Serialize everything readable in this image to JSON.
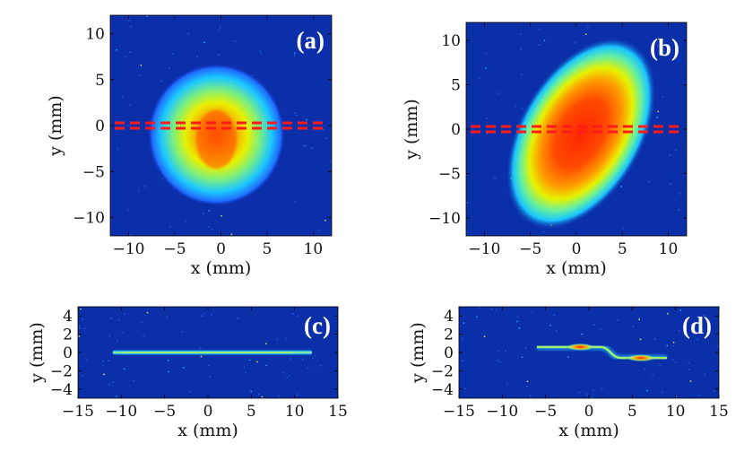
{
  "figure_title": "",
  "chart_data": [
    {
      "type": "heatmap",
      "panel_label": "(a)",
      "description_values": {
        "beam_center_x_mm": -0.5,
        "beam_center_y_mm": -1.0,
        "radius_x_mm": 7.5,
        "radius_y_mm": 7.8,
        "peak_x_mm": -0.5,
        "peak_y_mm": -1.5
      },
      "xlabel": "x (mm)",
      "ylabel": "y (mm)",
      "xlim": [
        -12,
        12
      ],
      "ylim": [
        -12,
        12
      ],
      "xticks": [
        -10,
        -5,
        0,
        5,
        10
      ],
      "yticks": [
        10,
        5,
        0,
        -5,
        -10
      ],
      "xtick_labels": [
        "−10",
        "−5",
        "0",
        "5",
        "10"
      ],
      "ytick_labels": [
        "10",
        "5",
        "0",
        "−5",
        "−10"
      ],
      "dashed_line_y_mm": 0,
      "colormap": "jet"
    },
    {
      "type": "heatmap",
      "panel_label": "(b)",
      "description_values": {
        "beam_center_x_mm": 0.5,
        "beam_center_y_mm": -0.5,
        "major_axis_mm": 11.5,
        "minor_axis_mm": 7.0,
        "tilt_deg": 60
      },
      "xlabel": "x (mm)",
      "ylabel": "y (mm)",
      "xlim": [
        -12,
        12
      ],
      "ylim": [
        -12,
        12
      ],
      "xticks": [
        -10,
        -5,
        0,
        5,
        10
      ],
      "yticks": [
        10,
        5,
        0,
        -5,
        -10
      ],
      "xtick_labels": [
        "−10",
        "−5",
        "0",
        "5",
        "10"
      ],
      "ytick_labels": [
        "10",
        "5",
        "0",
        "−5",
        "−10"
      ],
      "dashed_line_y_mm": 0,
      "colormap": "jet"
    },
    {
      "type": "heatmap",
      "panel_label": "(c)",
      "description_values": {
        "line_from_x_mm": -11,
        "line_to_x_mm": 12,
        "line_y_mm": 0
      },
      "xlabel": "x (mm)",
      "ylabel": "y (mm)",
      "xlim": [
        -15,
        15
      ],
      "ylim": [
        -5,
        5
      ],
      "xticks": [
        -15,
        -10,
        -5,
        0,
        5,
        10,
        15
      ],
      "yticks": [
        4,
        2,
        0,
        -2,
        -4
      ],
      "xtick_labels": [
        "−15",
        "−10",
        "−5",
        "0",
        "5",
        "10",
        "15"
      ],
      "ytick_labels": [
        "4",
        "2",
        "0",
        "−2",
        "−4"
      ],
      "colormap": "jet"
    },
    {
      "type": "heatmap",
      "panel_label": "(d)",
      "description_values": {
        "line_left_x_mm": -6,
        "line_left_y_mm": 0.6,
        "line_right_x_mm": 9,
        "line_right_y_mm": -0.6,
        "hot_spots_x_mm": [
          -1,
          6
        ]
      },
      "xlabel": "x (mm)",
      "ylabel": "y (mm)",
      "xlim": [
        -15,
        15
      ],
      "ylim": [
        -5,
        5
      ],
      "xticks": [
        -15,
        -10,
        -5,
        0,
        5,
        10,
        15
      ],
      "yticks": [
        4,
        2,
        0,
        -2,
        -4
      ],
      "xtick_labels": [
        "−15",
        "−10",
        "−5",
        "0",
        "5",
        "10",
        "15"
      ],
      "ytick_labels": [
        "4",
        "2",
        "0",
        "−2",
        "−4"
      ],
      "colormap": "jet"
    }
  ]
}
